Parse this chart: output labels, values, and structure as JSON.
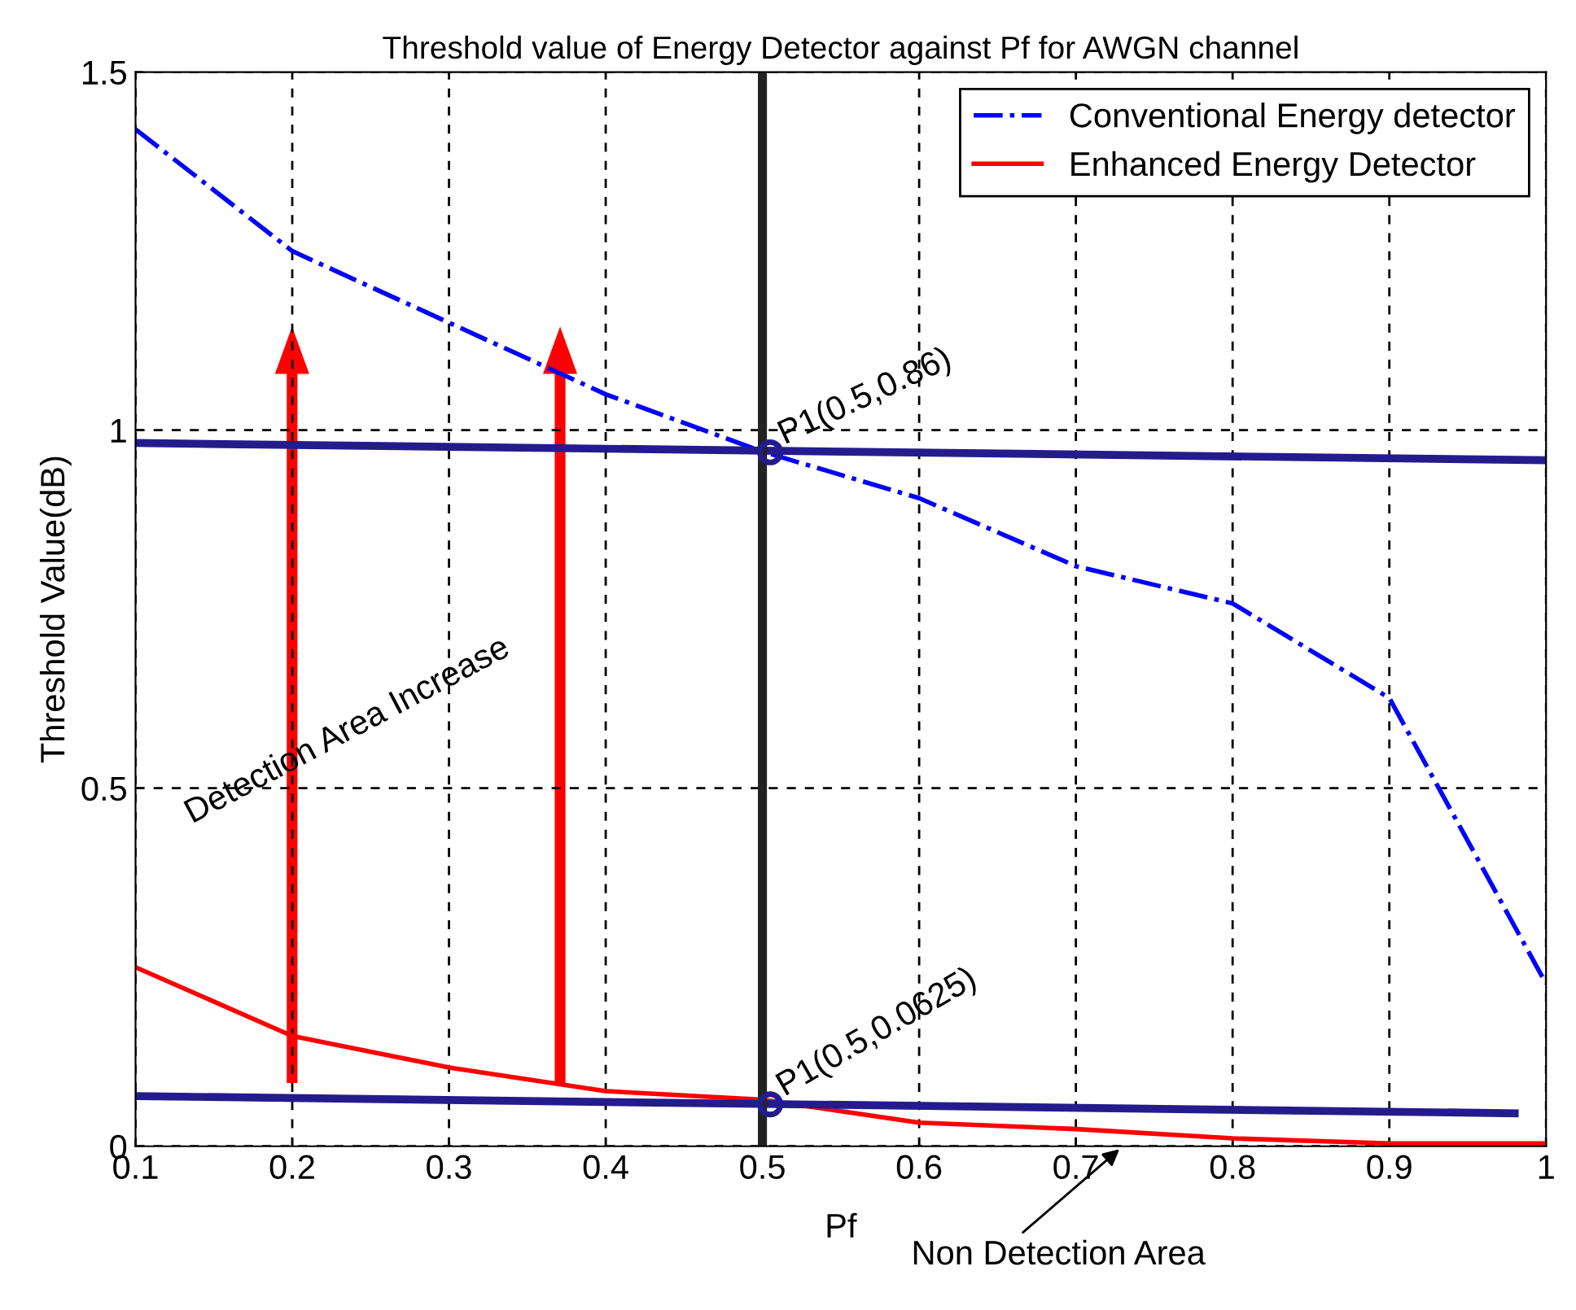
{
  "chart_data": {
    "type": "line",
    "title": "Threshold value of Energy Detector against Pf for AWGN channel",
    "xlabel": "Pf",
    "ylabel": "Threshold Value(dB)",
    "x": [
      0.1,
      0.2,
      0.3,
      0.4,
      0.5,
      0.6,
      0.7,
      0.8,
      0.9,
      1.0
    ],
    "series": [
      {
        "name": "Conventional Energy detector",
        "color": "#0000ff",
        "line_style": "dashdot",
        "values": [
          1.42,
          1.25,
          1.15,
          1.05,
          0.97,
          0.905,
          0.81,
          0.758,
          0.626,
          0.227
        ]
      },
      {
        "name": "Enhanced Energy Detector",
        "color": "#ff0000",
        "line_style": "solid",
        "values": [
          0.25,
          0.154,
          0.11,
          0.077,
          0.065,
          0.033,
          0.024,
          0.011,
          0.004,
          0.004
        ]
      },
      {
        "color": "#241c8c",
        "line_style": "solid",
        "x": [
          0.1,
          1.0
        ],
        "values": [
          0.982,
          0.958
        ]
      },
      {
        "color": "#241c8c",
        "line_style": "solid",
        "x": [
          0.1,
          0.98
        ],
        "values": [
          0.07,
          0.046
        ]
      }
    ],
    "ref_lines": [
      {
        "axis": "x",
        "value": 0.5,
        "color": "#222222"
      }
    ],
    "annotations": [
      "P1(0.5,0.86)",
      "P1(0.5,0.0625)",
      "Detection Area Increase",
      "Non Detection Area"
    ],
    "xlim": [
      0.1,
      1.0
    ],
    "ylim": [
      0,
      1.5
    ],
    "xticks": [
      0.1,
      0.2,
      0.3,
      0.4,
      0.5,
      0.6,
      0.7,
      0.8,
      0.9,
      {
        "value": 1.0,
        "label": "1"
      }
    ],
    "yticks": [
      0,
      0.5,
      1,
      1.5
    ],
    "grid": true,
    "legend": "top right",
    "marker": "none"
  }
}
